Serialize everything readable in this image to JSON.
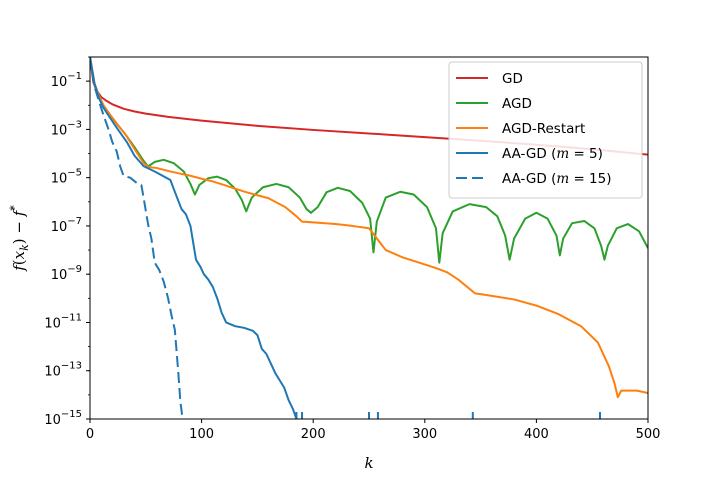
{
  "chart_data": {
    "type": "line",
    "title": "",
    "xlabel": "k",
    "ylabel": "f(x_k) − f*",
    "xlim": [
      0,
      500
    ],
    "ylim": [
      1e-15,
      1
    ],
    "yscale": "log",
    "xticks": [
      0,
      100,
      200,
      300,
      400,
      500
    ],
    "yticks": [
      {
        "value": 0.1,
        "mantissa": "10",
        "exp": "−1"
      },
      {
        "value": 0.001,
        "mantissa": "10",
        "exp": "−3"
      },
      {
        "value": 1e-05,
        "mantissa": "10",
        "exp": "−5"
      },
      {
        "value": 1e-07,
        "mantissa": "10",
        "exp": "−7"
      },
      {
        "value": 1e-09,
        "mantissa": "10",
        "exp": "−9"
      },
      {
        "value": 1e-11,
        "mantissa": "10",
        "exp": "−11"
      },
      {
        "value": 1e-13,
        "mantissa": "10",
        "exp": "−13"
      },
      {
        "value": 1e-15,
        "mantissa": "10",
        "exp": "−15"
      }
    ],
    "legend_position": "top-right",
    "series": [
      {
        "name": "GD",
        "legend_main": "GD",
        "legend_m": "",
        "color": "#d62728",
        "dash": "solid",
        "points": [
          [
            0,
            1
          ],
          [
            3,
            0.09
          ],
          [
            6,
            0.04
          ],
          [
            10,
            0.022
          ],
          [
            15,
            0.015
          ],
          [
            20,
            0.011
          ],
          [
            30,
            0.0072
          ],
          [
            40,
            0.0055
          ],
          [
            50,
            0.0045
          ],
          [
            70,
            0.0033
          ],
          [
            100,
            0.0023
          ],
          [
            150,
            0.0014
          ],
          [
            200,
            0.00095
          ],
          [
            250,
            0.00068
          ],
          [
            300,
            0.00048
          ],
          [
            350,
            0.00034
          ],
          [
            400,
            0.00023
          ],
          [
            450,
            0.00015
          ],
          [
            500,
            9e-05
          ]
        ]
      },
      {
        "name": "AGD",
        "legend_main": "AGD",
        "legend_m": "",
        "color": "#2ca02c",
        "dash": "solid",
        "points": [
          [
            0,
            1
          ],
          [
            4,
            0.08
          ],
          [
            8,
            0.025
          ],
          [
            12,
            0.01
          ],
          [
            18,
            0.004
          ],
          [
            25,
            0.0015
          ],
          [
            32,
            0.0006
          ],
          [
            40,
            0.00018
          ],
          [
            48,
            5e-05
          ],
          [
            52,
            2.9e-05
          ],
          [
            58,
            4.5e-05
          ],
          [
            66,
            5.5e-05
          ],
          [
            75,
            4e-05
          ],
          [
            84,
            1.8e-05
          ],
          [
            90,
            5.5e-06
          ],
          [
            94,
            2e-06
          ],
          [
            98,
            5e-06
          ],
          [
            106,
            9.5e-06
          ],
          [
            114,
            1.1e-05
          ],
          [
            122,
            8e-06
          ],
          [
            130,
            3.5e-06
          ],
          [
            136,
            1.2e-06
          ],
          [
            140,
            4e-07
          ],
          [
            145,
            1.5e-06
          ],
          [
            155,
            4e-06
          ],
          [
            167,
            5.5e-06
          ],
          [
            178,
            4e-06
          ],
          [
            188,
            1.5e-06
          ],
          [
            194,
            5e-07
          ],
          [
            198,
            3.5e-07
          ],
          [
            204,
            6e-07
          ],
          [
            212,
            2.5e-06
          ],
          [
            222,
            3.8e-06
          ],
          [
            233,
            2.8e-06
          ],
          [
            244,
            9e-07
          ],
          [
            251,
            2e-07
          ],
          [
            254,
            8e-09
          ],
          [
            257,
            1.5e-07
          ],
          [
            265,
            1.5e-06
          ],
          [
            278,
            2.6e-06
          ],
          [
            290,
            2e-06
          ],
          [
            302,
            6e-07
          ],
          [
            310,
            8e-08
          ],
          [
            313,
            3e-09
          ],
          [
            316,
            5e-08
          ],
          [
            325,
            4e-07
          ],
          [
            340,
            8e-07
          ],
          [
            355,
            6e-07
          ],
          [
            365,
            2.5e-07
          ],
          [
            372,
            4e-08
          ],
          [
            376,
            4e-09
          ],
          [
            380,
            3e-08
          ],
          [
            390,
            2e-07
          ],
          [
            400,
            3.5e-07
          ],
          [
            410,
            2e-07
          ],
          [
            418,
            4e-08
          ],
          [
            421,
            6e-09
          ],
          [
            424,
            3e-08
          ],
          [
            432,
            1.3e-07
          ],
          [
            443,
            1.6e-07
          ],
          [
            452,
            8e-08
          ],
          [
            458,
            1.5e-08
          ],
          [
            461,
            4e-09
          ],
          [
            464,
            1.5e-08
          ],
          [
            472,
            8e-08
          ],
          [
            482,
            1.2e-07
          ],
          [
            492,
            6e-08
          ],
          [
            500,
            1.2e-08
          ]
        ]
      },
      {
        "name": "AGD-Restart",
        "legend_main": "AGD-Restart",
        "legend_m": "",
        "color": "#ff7f0e",
        "dash": "solid",
        "points": [
          [
            0,
            1
          ],
          [
            4,
            0.08
          ],
          [
            8,
            0.025
          ],
          [
            12,
            0.01
          ],
          [
            18,
            0.004
          ],
          [
            25,
            0.0015
          ],
          [
            32,
            0.0006
          ],
          [
            40,
            0.00015
          ],
          [
            48,
            4e-05
          ],
          [
            52,
            2.8e-05
          ],
          [
            60,
            2.5e-05
          ],
          [
            70,
            1.9e-05
          ],
          [
            80,
            1.5e-05
          ],
          [
            90,
            1.2e-05
          ],
          [
            100,
            9e-06
          ],
          [
            110,
            7e-06
          ],
          [
            120,
            5e-06
          ],
          [
            130,
            3.5e-06
          ],
          [
            140,
            2.5e-06
          ],
          [
            160,
            1.4e-06
          ],
          [
            175,
            6e-07
          ],
          [
            185,
            2.5e-07
          ],
          [
            190,
            1.5e-07
          ],
          [
            200,
            1.4e-07
          ],
          [
            220,
            1.2e-07
          ],
          [
            235,
            1e-07
          ],
          [
            250,
            8e-08
          ],
          [
            265,
            1e-08
          ],
          [
            280,
            5e-09
          ],
          [
            295,
            3e-09
          ],
          [
            310,
            1.8e-09
          ],
          [
            320,
            1.2e-09
          ],
          [
            330,
            6e-10
          ],
          [
            340,
            2.5e-10
          ],
          [
            345,
            1.6e-10
          ],
          [
            350,
            1.5e-10
          ],
          [
            380,
            9e-11
          ],
          [
            400,
            5e-11
          ],
          [
            420,
            2.2e-11
          ],
          [
            440,
            7e-12
          ],
          [
            455,
            1.5e-12
          ],
          [
            465,
            1.5e-13
          ],
          [
            470,
            3e-14
          ],
          [
            473,
            8e-15
          ],
          [
            476,
            1.5e-14
          ],
          [
            490,
            1.5e-14
          ],
          [
            500,
            1.2e-14
          ]
        ]
      },
      {
        "name": "AA-GD (m=5)",
        "legend_main": "AA-GD (",
        "legend_m": "m",
        "color": "#1f77b4",
        "dash": "solid",
        "points": [
          [
            0,
            1
          ],
          [
            4,
            0.08
          ],
          [
            8,
            0.02
          ],
          [
            12,
            0.008
          ],
          [
            18,
            0.003
          ],
          [
            25,
            0.001
          ],
          [
            33,
            0.0003
          ],
          [
            40,
            8e-05
          ],
          [
            48,
            3e-05
          ],
          [
            58,
            1.8e-05
          ],
          [
            65,
            1.2e-05
          ],
          [
            72,
            8e-06
          ],
          [
            78,
            1.5e-06
          ],
          [
            82,
            5e-07
          ],
          [
            86,
            3e-07
          ],
          [
            90,
            1e-07
          ],
          [
            95,
            4e-09
          ],
          [
            99,
            2e-09
          ],
          [
            102,
            1e-09
          ],
          [
            106,
            6e-10
          ],
          [
            110,
            3e-10
          ],
          [
            114,
            1e-10
          ],
          [
            118,
            2.5e-11
          ],
          [
            122,
            1e-11
          ],
          [
            130,
            7e-12
          ],
          [
            138,
            6e-12
          ],
          [
            146,
            4.5e-12
          ],
          [
            150,
            3e-12
          ],
          [
            154,
            8e-13
          ],
          [
            158,
            5e-13
          ],
          [
            162,
            2e-13
          ],
          [
            166,
            8e-14
          ],
          [
            170,
            4e-14
          ],
          [
            174,
            2e-14
          ],
          [
            178,
            6e-15
          ],
          [
            182,
            2.5e-15
          ],
          [
            185,
            1e-15
          ]
        ]
      },
      {
        "name": "AA-GD (m=15)",
        "legend_main": "AA-GD (",
        "legend_m": "m",
        "color": "#1f77b4",
        "dash": "dashed",
        "points": [
          [
            0,
            1
          ],
          [
            4,
            0.06
          ],
          [
            8,
            0.015
          ],
          [
            12,
            0.004
          ],
          [
            16,
            0.0012
          ],
          [
            20,
            0.0003
          ],
          [
            24,
            0.00012
          ],
          [
            27,
            3e-05
          ],
          [
            30,
            1.2e-05
          ],
          [
            36,
            1e-05
          ],
          [
            42,
            6e-06
          ],
          [
            46,
            5e-06
          ],
          [
            48,
            1.5e-06
          ],
          [
            52,
            1.2e-07
          ],
          [
            55,
            3e-08
          ],
          [
            58,
            3e-09
          ],
          [
            62,
            1.5e-09
          ],
          [
            66,
            5e-10
          ],
          [
            70,
            1e-10
          ],
          [
            73,
            2e-11
          ],
          [
            76,
            5e-12
          ],
          [
            79,
            1e-13
          ],
          [
            81,
            5e-15
          ],
          [
            83,
            1e-15
          ]
        ]
      }
    ],
    "rug_x": [
      185,
      190,
      250,
      258,
      343,
      457
    ]
  }
}
